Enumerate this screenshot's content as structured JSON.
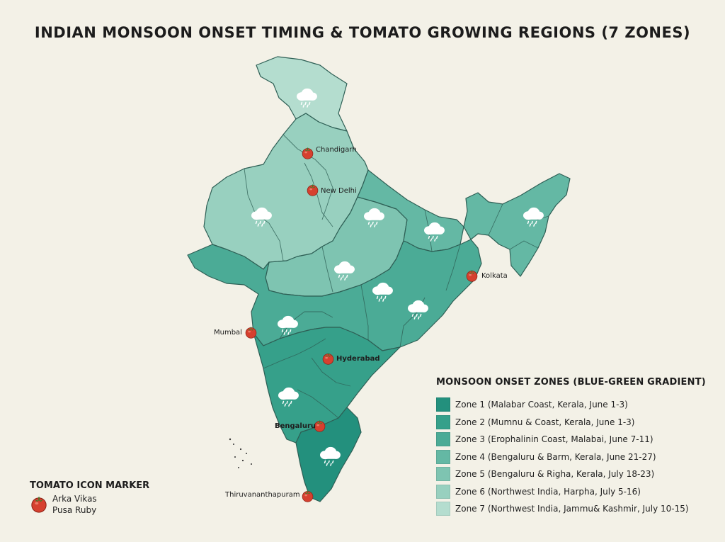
{
  "title": "INDIAN MONSOON ONSET TIMING & TOMATO GROWING REGIONS (7 ZONES)",
  "colors": {
    "background": "#f3f1e7",
    "zone_colors": [
      "#23907d",
      "#36a08a",
      "#4bab96",
      "#64b8a4",
      "#7ec4b1",
      "#98d0bf",
      "#b4ddcf"
    ],
    "border": "#2e5f55",
    "tomato": "#d6402f"
  },
  "cities": [
    {
      "name": "Chandigarh",
      "bold": false
    },
    {
      "name": "New Delhi",
      "bold": false
    },
    {
      "name": "Kolkata",
      "bold": false
    },
    {
      "name": "Mumbal",
      "bold": false
    },
    {
      "name": "Hyderabad",
      "bold": true
    },
    {
      "name": "Bengaluru",
      "bold": true
    },
    {
      "name": "Thiruvananthapuram",
      "bold": false
    }
  ],
  "rain_icon": "rain-cloud-icon",
  "legend": {
    "title": "MONSOON ONSET ZONES (BLUE-GREEN GRADIENT)",
    "items": [
      {
        "label": "Zone 1 (Malabar Coast, Kerala, June 1-3)",
        "color": "#23907d"
      },
      {
        "label": "Zone 2 (Mumnu & Coast, Kerala, June 1-3)",
        "color": "#36a08a"
      },
      {
        "label": "Zone 3 (Erophalinin Coast, Malabai, June 7-11)",
        "color": "#4bab96"
      },
      {
        "label": "Zone 4 (Bengaluru & Barm, Kerala, June 21-27)",
        "color": "#64b8a4"
      },
      {
        "label": "Zone 5 (Bengaluru & Righa, Kerala, July 18-23)",
        "color": "#7ec4b1"
      },
      {
        "label": "Zone 6 (Northwest India, Harpha, July 5-16)",
        "color": "#98d0bf"
      },
      {
        "label": "Zone 7 (Northwest India, Jammu& Kashmir, July 10-15)",
        "color": "#b4ddcf"
      }
    ]
  },
  "marker_legend": {
    "title": "TOMATO ICON MARKER",
    "icon": "tomato-icon",
    "lines": [
      "Arka Vikas",
      "Pusa Ruby"
    ]
  }
}
